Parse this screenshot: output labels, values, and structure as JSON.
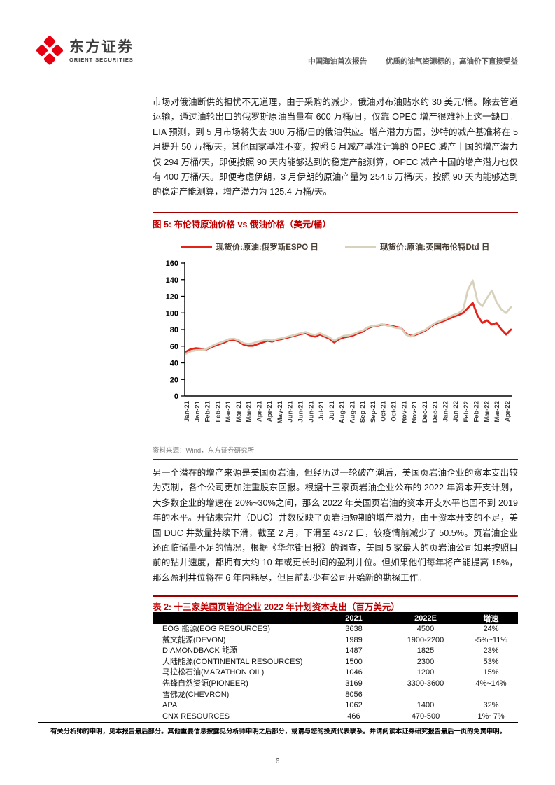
{
  "header": {
    "brand_cn": "东方证券",
    "brand_en": "ORIENT SECURITIES",
    "report_title": "中国海油首次报告 —— 优质的油气资源标的，高油价下直接受益"
  },
  "paragraphs": {
    "p1": "市场对俄油断供的担忧不无道理，由于采购的减少，俄油对布油贴水约 30 美元/桶。除去管道运输，通过油轮出口的俄罗斯原油当量有 600 万桶/日，仅靠 OPEC 增产很难补上这一缺口。EIA 预测，到 5 月市场将失去 300 万桶/日的俄油供应。增产潜力方面，沙特的减产基准将在 5 月提升 50 万桶/天，其他国家基准不变，按照 5 月减产基准计算的 OPEC 减产十国的增产潜力仅 294 万桶/天，即便按照 90 天内能够达到的稳定产能测算，OPEC 减产十国的增产潜力也仅有 400 万桶/天。即便考虑伊朗，3 月伊朗的原油产量为 254.6 万桶/天，按照 90 天内能够达到的稳定产能测算，增产潜力为 125.4 万桶/天。",
    "p2": "另一个潜在的增产来源是美国页岩油，但经历过一轮破产潮后，美国页岩油企业的资本支出较为克制，各个公司更加注重股东回报。根据十三家页岩油企业公布的 2022 年资本开支计划，大多数企业的增速在 20%~30%之间，那么 2022 年美国页岩油的资本开支水平也回不到 2019 年的水平。开钻未完井（DUC）井数反映了页岩油短期的增产潜力，由于资本开支的不足，美国 DUC 井数量持续下滑，截至 2 月，下滑至 4372 口，较疫情前减少了 50.5%。页岩油企业还面临储量不足的情况，根据《华尔街日报》的调查，美国 5 家最大的页岩油公司如果按照目前的钻井速度，都拥有大约 10 年或更长时间的盈利井位。但如果他们每年将产能提高 15%，那么盈利井位将在 6 年内耗尽，但目前却少有公司开始新的勘探工作。"
  },
  "figure": {
    "title": "图 5: 布伦特原油价格 vs 俄油价格（美元/桶）",
    "source": "资料来源：Wind，东方证券研究所"
  },
  "chart_data": {
    "type": "line",
    "title": "布伦特原油价格 vs 俄油价格（美元/桶）",
    "ylim": [
      0,
      160
    ],
    "yticks": [
      0,
      20,
      40,
      60,
      80,
      100,
      120,
      140,
      160
    ],
    "grid": false,
    "legend_position": "top",
    "x_labels": [
      "Jan-21",
      "Jan-21",
      "Feb-21",
      "Feb-21",
      "Mar-21",
      "Mar-21",
      "Mar-21",
      "Apr-21",
      "Apr-21",
      "May-21",
      "Jun-21",
      "Jun-21",
      "Jun-21",
      "Jul-21",
      "Jul-21",
      "Aug-21",
      "Aug-21",
      "Sep-21",
      "Sep-21",
      "Oct-21",
      "Oct-21",
      "Nov-21",
      "Nov-21",
      "Dec-21",
      "Dec-21",
      "Jan-22",
      "Jan-22",
      "Feb-22",
      "Feb-22",
      "Mar-22",
      "Mar-22",
      "Apr-22"
    ],
    "series": [
      {
        "name": "现货价:原油:俄罗斯ESPO 日",
        "color": "#E2231A",
        "values": [
          53.5,
          56.5,
          57.5,
          57,
          55.5,
          58,
          60.5,
          62.5,
          64.5,
          67,
          67.5,
          65.5,
          62,
          60.5,
          60.5,
          62.5,
          64.5,
          66.5,
          65.5,
          67.5,
          68.5,
          70,
          71.5,
          73,
          74.5,
          75.5,
          73,
          71.5,
          74,
          71.5,
          69,
          64.5,
          68.5,
          70.5,
          71.5,
          73,
          75.5,
          77.5,
          81.5,
          83.5,
          84.5,
          86,
          85.5,
          84.5,
          83,
          82,
          75,
          72.5,
          73.5,
          76,
          78.5,
          82.5,
          86.5,
          88.5,
          90.5,
          93,
          95.5,
          97.5,
          100,
          106,
          112,
          97,
          88,
          91,
          86,
          88,
          80,
          74,
          80
        ]
      },
      {
        "name": "现货价:原油:英国布伦特Dtd 日",
        "color": "#D8D1BC",
        "values": [
          51,
          54,
          55,
          55.5,
          56,
          59,
          62,
          64,
          66,
          68.5,
          69,
          67,
          63.5,
          62.5,
          63.5,
          65.5,
          66.5,
          68,
          66.5,
          68.5,
          69.5,
          71,
          72.5,
          74,
          75.5,
          77,
          74.5,
          73.5,
          75.5,
          73,
          70.5,
          66.5,
          70,
          72.5,
          73,
          74.5,
          77,
          79,
          82.5,
          84.5,
          85,
          86.5,
          85,
          83.5,
          82,
          81.5,
          74,
          71.5,
          74.5,
          77,
          79.5,
          83.5,
          87.5,
          90,
          92,
          95,
          97.5,
          99.5,
          104,
          128,
          139,
          114,
          108,
          118,
          127,
          113,
          104,
          100,
          107
        ]
      }
    ]
  },
  "table": {
    "title": "表 2: 十三家美国页岩油企业 2022 年计划资本支出（百万美元）",
    "columns": [
      "",
      "2021",
      "2022E",
      "增速"
    ],
    "rows": [
      [
        "EOG 能源(EOG RESOURCES)",
        "3638",
        "4500",
        "24%"
      ],
      [
        "戴文能源(DEVON)",
        "1989",
        "1900-2200",
        "-5%~11%"
      ],
      [
        "DIAMONDBACK 能源",
        "1487",
        "1825",
        "23%"
      ],
      [
        "大陆能源(CONTINENTAL RESOURCES)",
        "1500",
        "2300",
        "53%"
      ],
      [
        "马拉松石油(MARATHON OIL)",
        "1046",
        "1200",
        "15%"
      ],
      [
        "先锋自然资源(PIONEER)",
        "3169",
        "3300-3600",
        "4%~14%"
      ],
      [
        "雪佛龙(CHEVRON)",
        "8056",
        "",
        ""
      ],
      [
        "APA",
        "1062",
        "1400",
        "32%"
      ],
      [
        "CNX RESOURCES",
        "466",
        "470-500",
        "1%~7%"
      ]
    ]
  },
  "footer": {
    "disclaimer": "有关分析师的申明，见本报告最后部分。其他重要信息披露见分析师申明之后部分，或请与您的投资代表联系。并请阅读本证券研究报告最后一页的免责申明。",
    "page_number": "6"
  },
  "colors": {
    "brand_red": "#E60012",
    "rule_red": "#9E0000",
    "title_red": "#C00000",
    "espo_red": "#E2231A",
    "brent_beige": "#D8D1BC",
    "table_header_bg": "#000000"
  }
}
